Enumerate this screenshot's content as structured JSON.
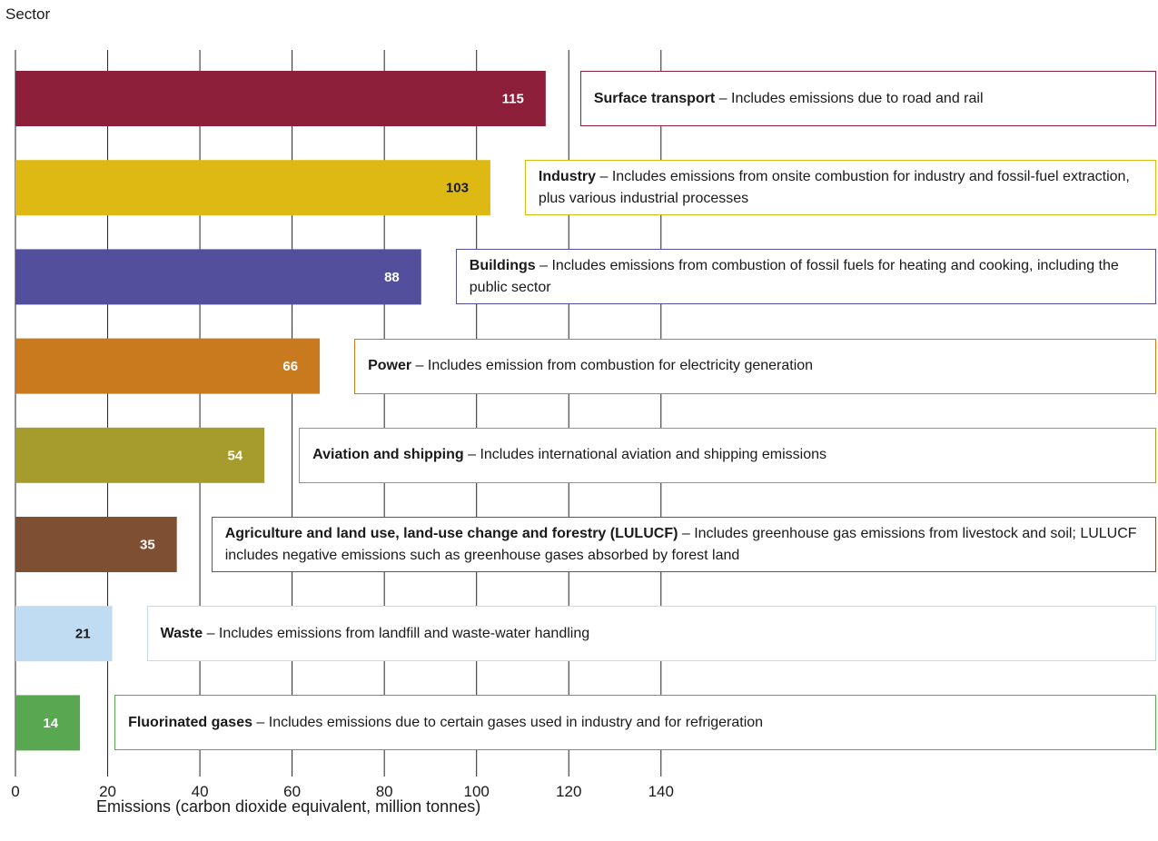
{
  "chart_data": {
    "type": "bar",
    "orientation": "horizontal",
    "ylabel": "Sector",
    "xlabel": "Emissions (carbon dioxide equivalent, million tonnes)",
    "xlim": [
      0,
      140
    ],
    "xticks": [
      "0",
      "20",
      "40",
      "60",
      "80",
      "100",
      "120",
      "140"
    ],
    "grid": "vertical",
    "categories": [
      "Surface transport",
      "Industry",
      "Buildings",
      "Power",
      "Aviation and shipping",
      "Agriculture and land use, land-use change and forestry (LULUCF)",
      "Waste",
      "Fluorinated gases"
    ],
    "values": [
      115,
      103,
      88,
      66,
      54,
      35,
      21,
      14
    ],
    "value_labels": [
      "115",
      "103",
      "88",
      "66",
      "54",
      "35",
      "21",
      "14"
    ],
    "colors": [
      "#8e1f3b",
      "#dfb913",
      "#534f9c",
      "#c97a1f",
      "#a69c2e",
      "#7f4f33",
      "#bfdcf2",
      "#5aa752"
    ],
    "label_colors": [
      "#ffffff",
      "#1a1a1a",
      "#ffffff",
      "#ffffff",
      "#ffffff",
      "#ffffff",
      "#1a1a1a",
      "#ffffff"
    ],
    "descriptions": [
      {
        "title": "Surface transport",
        "text": " – Includes emissions due to road and rail"
      },
      {
        "title": "Industry",
        "text": " – Includes emissions from onsite combustion for industry and fossil-fuel extraction, plus various industrial processes"
      },
      {
        "title": "Buildings",
        "text": " – Includes emissions from combustion of fossil fuels for heating and cooking, including the public sector"
      },
      {
        "title": "Power",
        "text": " – Includes emission from combustion for electricity generation"
      },
      {
        "title": "Aviation and shipping",
        "text": " – Includes international aviation and shipping emissions"
      },
      {
        "title": "Agriculture and land use, land-use change and forestry (LULUCF)",
        "text": " – Includes greenhouse gas emissions from livestock and soil; LULUCF includes negative emissions such as greenhouse gases absorbed by forest land"
      },
      {
        "title": "Waste",
        "text": " – Includes emissions from landfill and waste-water handling"
      },
      {
        "title": "Fluorinated gases",
        "text": " – Includes emissions due to certain gases used in industry and for refrigeration"
      }
    ]
  }
}
